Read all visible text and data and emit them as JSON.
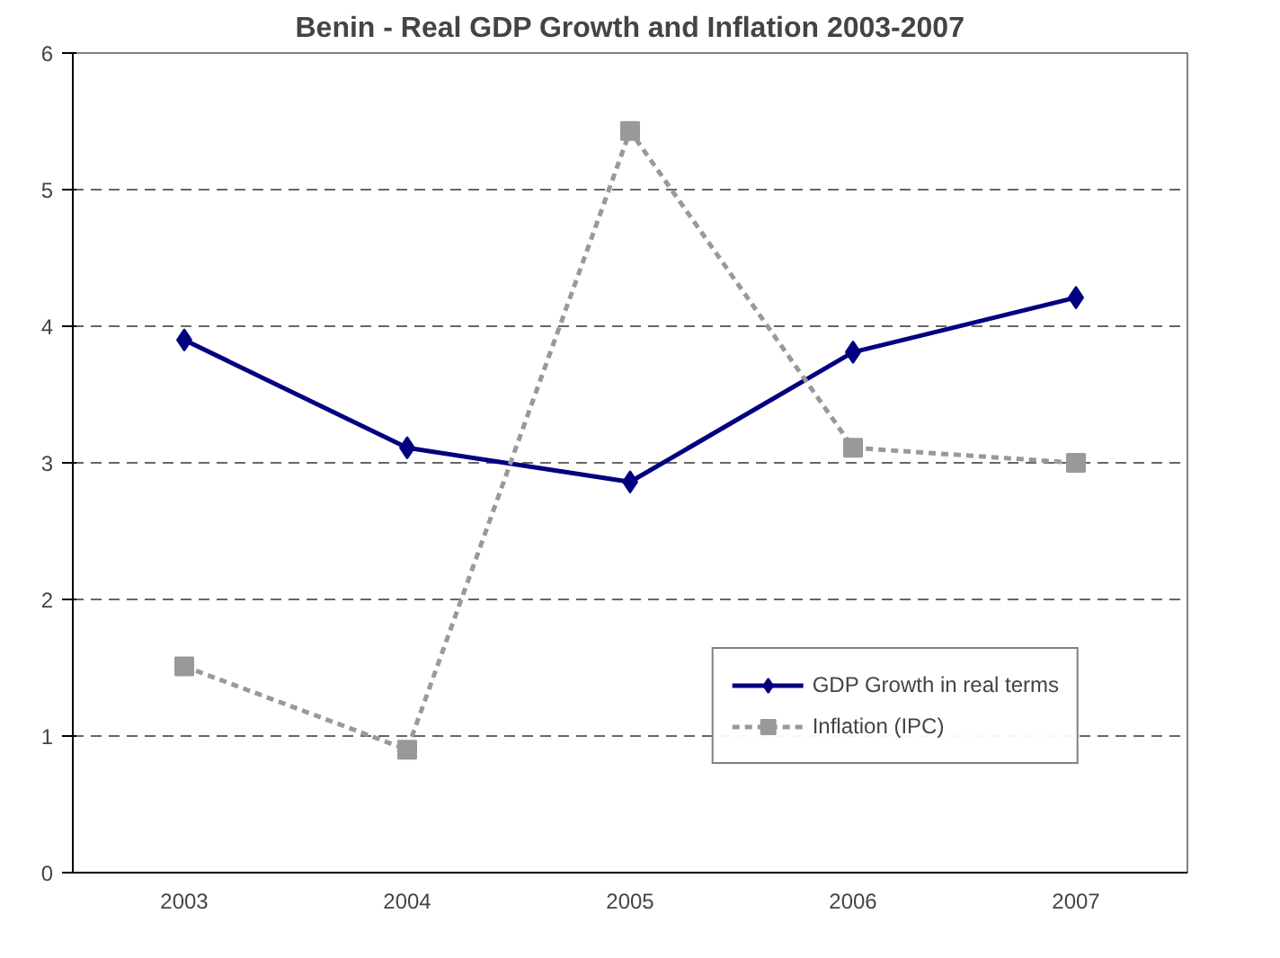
{
  "chart_data": {
    "type": "line",
    "title": "Benin - Real GDP Growth and Inflation 2003-2007",
    "categories": [
      "2003",
      "2004",
      "2005",
      "2006",
      "2007"
    ],
    "series": [
      {
        "name": "GDP Growth in real terms",
        "color": "#000080",
        "values": [
          3.9,
          3.11,
          2.86,
          3.81,
          4.21
        ],
        "marker": "diamond",
        "line_style": "solid"
      },
      {
        "name": "Inflation (IPC)",
        "color": "#999999",
        "values": [
          1.51,
          0.9,
          5.43,
          3.11,
          3.0
        ],
        "marker": "square",
        "line_style": "dotted"
      }
    ],
    "ylim": [
      0,
      6
    ],
    "yticks": [
      0,
      1,
      2,
      3,
      4,
      5,
      6
    ],
    "grid": "y",
    "legend": "bottom right"
  }
}
